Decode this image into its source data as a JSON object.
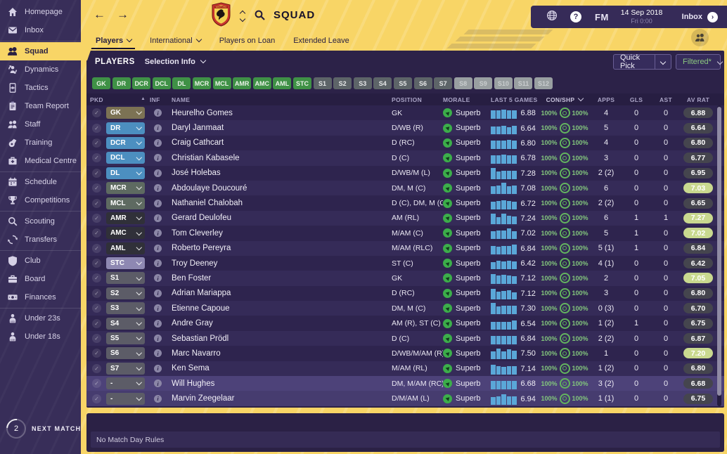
{
  "header": {
    "title": "SQUAD",
    "tabs": [
      {
        "label": "Players",
        "has_dropdown": true,
        "active": true
      },
      {
        "label": "International",
        "has_dropdown": true,
        "active": false
      },
      {
        "label": "Players on Loan",
        "has_dropdown": false,
        "active": false
      },
      {
        "label": "Extended Leave",
        "has_dropdown": false,
        "active": false
      }
    ]
  },
  "topbar": {
    "fm_label": "FM",
    "date": "14 Sep 2018",
    "time": "Fri 0:00",
    "inbox_label": "Inbox",
    "help_label": "?"
  },
  "sidebar": {
    "items": [
      {
        "label": "Homepage",
        "icon": "home"
      },
      {
        "label": "Inbox",
        "icon": "mail",
        "divider_after": true
      },
      {
        "label": "Squad",
        "icon": "squad",
        "active": true
      },
      {
        "label": "Dynamics",
        "icon": "dynamics"
      },
      {
        "label": "Tactics",
        "icon": "tactics"
      },
      {
        "label": "Team Report",
        "icon": "report"
      },
      {
        "label": "Staff",
        "icon": "staff"
      },
      {
        "label": "Training",
        "icon": "training"
      },
      {
        "label": "Medical Centre",
        "icon": "medical",
        "divider_after": true
      },
      {
        "label": "Schedule",
        "icon": "schedule"
      },
      {
        "label": "Competitions",
        "icon": "trophy",
        "divider_after": true
      },
      {
        "label": "Scouting",
        "icon": "search"
      },
      {
        "label": "Transfers",
        "icon": "transfers",
        "divider_after": true
      },
      {
        "label": "Club",
        "icon": "shield"
      },
      {
        "label": "Board",
        "icon": "briefcase"
      },
      {
        "label": "Finances",
        "icon": "money",
        "divider_after": true
      },
      {
        "label": "Under 23s",
        "icon": "u23"
      },
      {
        "label": "Under 18s",
        "icon": "u18"
      }
    ],
    "next_match": {
      "label": "NEXT MATCH",
      "count": "2"
    }
  },
  "panel": {
    "title": "PLAYERS",
    "selection_info_label": "Selection Info",
    "quick_pick_label": "Quick Pick",
    "filtered_label": "Filtered*"
  },
  "filters": {
    "chips": [
      {
        "label": "GK",
        "state": "green"
      },
      {
        "label": "DR",
        "state": "green"
      },
      {
        "label": "DCR",
        "state": "green"
      },
      {
        "label": "DCL",
        "state": "green"
      },
      {
        "label": "DL",
        "state": "green"
      },
      {
        "label": "MCR",
        "state": "green"
      },
      {
        "label": "MCL",
        "state": "green"
      },
      {
        "label": "AMR",
        "state": "green"
      },
      {
        "label": "AMC",
        "state": "green"
      },
      {
        "label": "AML",
        "state": "green"
      },
      {
        "label": "STC",
        "state": "green"
      },
      {
        "label": "S1",
        "state": "gray"
      },
      {
        "label": "S2",
        "state": "gray"
      },
      {
        "label": "S3",
        "state": "gray"
      },
      {
        "label": "S4",
        "state": "gray"
      },
      {
        "label": "S5",
        "state": "gray"
      },
      {
        "label": "S6",
        "state": "gray"
      },
      {
        "label": "S7",
        "state": "gray"
      },
      {
        "label": "S8",
        "state": "disabled"
      },
      {
        "label": "S9",
        "state": "disabled"
      },
      {
        "label": "S10",
        "state": "disabled"
      },
      {
        "label": "S11",
        "state": "disabled"
      },
      {
        "label": "S12",
        "state": "disabled"
      }
    ]
  },
  "table": {
    "columns": [
      "PKD",
      "INF",
      "NAME",
      "POSITION",
      "MORALE",
      "LAST 5 GAMES",
      "CON/SHP",
      "APPS",
      "GLS",
      "AST",
      "AV RAT"
    ],
    "rows": [
      {
        "pkd": "GK",
        "pkd_type": "gk",
        "name": "Heurelho Gomes",
        "position": "GK",
        "morale": "Superb",
        "last5_rating": "6.88",
        "bars": [
          12,
          12,
          13,
          12,
          12
        ],
        "condition": "100%",
        "sharpness": "100%",
        "apps": "4",
        "gls": "0",
        "ast": "0",
        "av_rat": "6.88",
        "av_rat_high": false,
        "highlight": false
      },
      {
        "pkd": "DR",
        "pkd_type": "d",
        "name": "Daryl Janmaat",
        "position": "D/WB (R)",
        "morale": "Superb",
        "last5_rating": "6.64",
        "bars": [
          11,
          11,
          12,
          10,
          12
        ],
        "condition": "100%",
        "sharpness": "100%",
        "apps": "5",
        "gls": "0",
        "ast": "0",
        "av_rat": "6.64",
        "av_rat_high": false,
        "highlight": false
      },
      {
        "pkd": "DCR",
        "pkd_type": "d",
        "name": "Craig Cathcart",
        "position": "D (RC)",
        "morale": "Superb",
        "last5_rating": "6.80",
        "bars": [
          12,
          12,
          12,
          13,
          12
        ],
        "condition": "100%",
        "sharpness": "100%",
        "apps": "4",
        "gls": "0",
        "ast": "0",
        "av_rat": "6.80",
        "av_rat_high": false,
        "highlight": false
      },
      {
        "pkd": "DCL",
        "pkd_type": "d",
        "name": "Christian Kabasele",
        "position": "D (C)",
        "morale": "Superb",
        "last5_rating": "6.78",
        "bars": [
          12,
          12,
          13,
          12,
          12
        ],
        "condition": "100%",
        "sharpness": "100%",
        "apps": "3",
        "gls": "0",
        "ast": "0",
        "av_rat": "6.77",
        "av_rat_high": false,
        "highlight": false
      },
      {
        "pkd": "DL",
        "pkd_type": "d",
        "name": "José Holebas",
        "position": "D/WB/M (L)",
        "morale": "Superb",
        "last5_rating": "7.28",
        "bars": [
          16,
          11,
          12,
          12,
          12
        ],
        "condition": "100%",
        "sharpness": "100%",
        "apps": "2 (2)",
        "gls": "0",
        "ast": "0",
        "av_rat": "6.95",
        "av_rat_high": false,
        "highlight": false
      },
      {
        "pkd": "MCR",
        "pkd_type": "m",
        "name": "Abdoulaye Doucouré",
        "position": "DM, M (C)",
        "morale": "Superb",
        "last5_rating": "7.08",
        "bars": [
          11,
          12,
          16,
          11,
          12
        ],
        "condition": "100%",
        "sharpness": "100%",
        "apps": "6",
        "gls": "0",
        "ast": "0",
        "av_rat": "7.03",
        "av_rat_high": true,
        "highlight": false
      },
      {
        "pkd": "MCL",
        "pkd_type": "m",
        "name": "Nathaniel Chalobah",
        "position": "D (C), DM, M (C)",
        "morale": "Superb",
        "last5_rating": "6.72",
        "bars": [
          11,
          12,
          13,
          12,
          11
        ],
        "condition": "100%",
        "sharpness": "100%",
        "apps": "2 (2)",
        "gls": "0",
        "ast": "0",
        "av_rat": "6.65",
        "av_rat_high": false,
        "highlight": false
      },
      {
        "pkd": "AMR",
        "pkd_type": "am",
        "name": "Gerard Deulofeu",
        "position": "AM (RL)",
        "morale": "Superb",
        "last5_rating": "7.24",
        "bars": [
          15,
          10,
          15,
          12,
          11
        ],
        "condition": "100%",
        "sharpness": "100%",
        "apps": "6",
        "gls": "1",
        "ast": "1",
        "av_rat": "7.27",
        "av_rat_high": true,
        "highlight": false
      },
      {
        "pkd": "AMC",
        "pkd_type": "am",
        "name": "Tom Cleverley",
        "position": "M/AM (C)",
        "morale": "Superb",
        "last5_rating": "7.02",
        "bars": [
          11,
          12,
          12,
          15,
          11
        ],
        "condition": "100%",
        "sharpness": "100%",
        "apps": "5",
        "gls": "1",
        "ast": "0",
        "av_rat": "7.02",
        "av_rat_high": true,
        "highlight": false
      },
      {
        "pkd": "AML",
        "pkd_type": "am",
        "name": "Roberto Pereyra",
        "position": "M/AM (RLC)",
        "morale": "Superb",
        "last5_rating": "6.84",
        "bars": [
          12,
          11,
          12,
          12,
          14
        ],
        "condition": "100%",
        "sharpness": "100%",
        "apps": "5 (1)",
        "gls": "1",
        "ast": "0",
        "av_rat": "6.84",
        "av_rat_high": false,
        "highlight": false
      },
      {
        "pkd": "STC",
        "pkd_type": "st",
        "name": "Troy Deeney",
        "position": "ST (C)",
        "morale": "Superb",
        "last5_rating": "6.42",
        "bars": [
          10,
          12,
          11,
          12,
          11
        ],
        "condition": "100%",
        "sharpness": "100%",
        "apps": "4 (1)",
        "gls": "0",
        "ast": "0",
        "av_rat": "6.42",
        "av_rat_high": false,
        "highlight": false
      },
      {
        "pkd": "S1",
        "pkd_type": "s",
        "name": "Ben Foster",
        "position": "GK",
        "morale": "Superb",
        "last5_rating": "7.12",
        "bars": [
          14,
          12,
          13,
          12,
          11
        ],
        "condition": "100%",
        "sharpness": "100%",
        "apps": "2",
        "gls": "0",
        "ast": "0",
        "av_rat": "7.05",
        "av_rat_high": true,
        "highlight": false
      },
      {
        "pkd": "S2",
        "pkd_type": "s",
        "name": "Adrian Mariappa",
        "position": "D (RC)",
        "morale": "Superb",
        "last5_rating": "7.12",
        "bars": [
          15,
          11,
          12,
          13,
          10
        ],
        "condition": "100%",
        "sharpness": "100%",
        "apps": "3",
        "gls": "0",
        "ast": "0",
        "av_rat": "6.80",
        "av_rat_high": false,
        "highlight": false
      },
      {
        "pkd": "S3",
        "pkd_type": "s",
        "name": "Etienne Capoue",
        "position": "DM, M (C)",
        "morale": "Superb",
        "last5_rating": "7.30",
        "bars": [
          16,
          11,
          12,
          12,
          12
        ],
        "condition": "100%",
        "sharpness": "100%",
        "apps": "0 (3)",
        "gls": "0",
        "ast": "0",
        "av_rat": "6.70",
        "av_rat_high": false,
        "highlight": false
      },
      {
        "pkd": "S4",
        "pkd_type": "s",
        "name": "Andre Gray",
        "position": "AM (R), ST (C)",
        "morale": "Superb",
        "last5_rating": "6.54",
        "bars": [
          11,
          11,
          11,
          11,
          13
        ],
        "condition": "100%",
        "sharpness": "100%",
        "apps": "1 (2)",
        "gls": "1",
        "ast": "0",
        "av_rat": "6.75",
        "av_rat_high": false,
        "highlight": false
      },
      {
        "pkd": "S5",
        "pkd_type": "s",
        "name": "Sebastian Prödl",
        "position": "D (C)",
        "morale": "Superb",
        "last5_rating": "6.84",
        "bars": [
          12,
          12,
          12,
          12,
          12
        ],
        "condition": "100%",
        "sharpness": "100%",
        "apps": "2 (2)",
        "gls": "0",
        "ast": "0",
        "av_rat": "6.87",
        "av_rat_high": false,
        "highlight": false
      },
      {
        "pkd": "S6",
        "pkd_type": "s",
        "name": "Marc Navarro",
        "position": "D/WB/M/AM (R)",
        "morale": "Superb",
        "last5_rating": "7.50",
        "bars": [
          11,
          15,
          11,
          14,
          12
        ],
        "condition": "100%",
        "sharpness": "100%",
        "apps": "1",
        "gls": "0",
        "ast": "0",
        "av_rat": "7.20",
        "av_rat_high": true,
        "highlight": false
      },
      {
        "pkd": "S7",
        "pkd_type": "s",
        "name": "Ken Sema",
        "position": "M/AM (RL)",
        "morale": "Superb",
        "last5_rating": "7.14",
        "bars": [
          14,
          12,
          11,
          12,
          12
        ],
        "condition": "100%",
        "sharpness": "100%",
        "apps": "1 (2)",
        "gls": "0",
        "ast": "0",
        "av_rat": "6.80",
        "av_rat_high": false,
        "highlight": false
      },
      {
        "pkd": "-",
        "pkd_type": "s",
        "name": "Will Hughes",
        "position": "DM, M/AM (RC)",
        "morale": "Superb",
        "last5_rating": "6.68",
        "bars": [
          12,
          12,
          12,
          12,
          12
        ],
        "condition": "100%",
        "sharpness": "100%",
        "apps": "3 (2)",
        "gls": "0",
        "ast": "0",
        "av_rat": "6.68",
        "av_rat_high": false,
        "highlight": true
      },
      {
        "pkd": "-",
        "pkd_type": "s",
        "name": "Marvin Zeegelaar",
        "position": "D/M/AM (L)",
        "morale": "Superb",
        "last5_rating": "6.94",
        "bars": [
          11,
          12,
          15,
          12,
          12
        ],
        "condition": "100%",
        "sharpness": "100%",
        "apps": "1 (1)",
        "gls": "0",
        "ast": "0",
        "av_rat": "6.75",
        "av_rat_high": false,
        "highlight": true
      }
    ]
  },
  "footer": {
    "note": "No Match Day Rules"
  },
  "colors": {
    "accent_yellow": "#f8d566",
    "panel_bg": "#2c2248",
    "sidebar_bg": "#382e59",
    "chip_green": "#3f9146",
    "morale_green": "#3cae4a",
    "bar_blue": "#5aa7d8",
    "condition_green": "#7cc47d",
    "rating_high_bg": "#c9d98f",
    "rating_bg": "#45454e",
    "pkd": {
      "gk": "#7c7254",
      "d": "#4c8fc0",
      "m": "#5e6a61",
      "am": "#303039",
      "st": "#8e88b2",
      "s": "#5c5c67"
    }
  }
}
